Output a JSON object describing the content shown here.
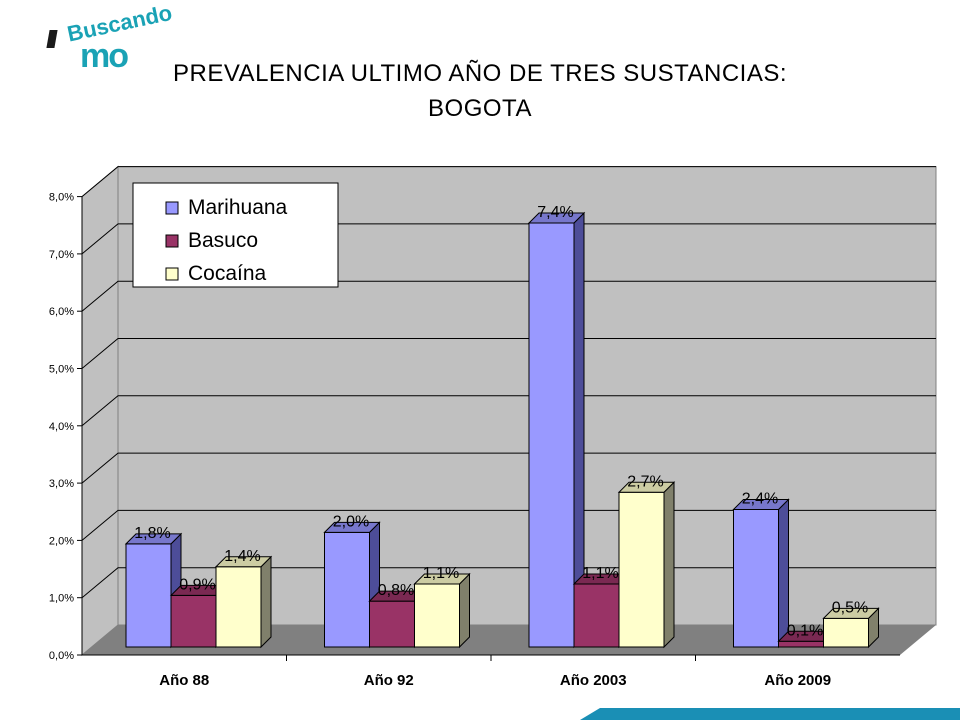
{
  "logo": {
    "text": "Buscando",
    "fragment": "mo"
  },
  "chart_data": {
    "type": "bar",
    "title_line1": "PREVALENCIA ULTIMO AÑO DE TRES SUSTANCIAS:",
    "title_line2": "BOGOTA",
    "categories": [
      "Año 88",
      "Año 92",
      "Año 2003",
      "Año 2009"
    ],
    "series": [
      {
        "name": "Marihuana",
        "values": [
          1.8,
          2.0,
          7.4,
          2.4
        ],
        "labels": [
          "1,8%",
          "2,0%",
          "7,4%",
          "2,4%"
        ],
        "color": "#9999ff",
        "side": "#4d4d99",
        "top": "#7777cc"
      },
      {
        "name": "Basuco",
        "values": [
          0.9,
          0.8,
          1.1,
          0.1
        ],
        "labels": [
          "0,9%",
          "0,8%",
          "1,1%",
          "0,1%"
        ],
        "color": "#993366",
        "side": "#4d1a33",
        "top": "#7a2952"
      },
      {
        "name": "Cocaína",
        "values": [
          1.4,
          1.1,
          2.7,
          0.5
        ],
        "labels": [
          "1,4%",
          "1,1%",
          "2,7%",
          "0,5%"
        ],
        "color": "#ffffcc",
        "side": "#80806b",
        "top": "#cccca3"
      }
    ],
    "yticks": [
      "0,0%",
      "1,0%",
      "2,0%",
      "3,0%",
      "4,0%",
      "5,0%",
      "6,0%",
      "7,0%",
      "8,0%"
    ],
    "ylim": [
      0,
      8
    ],
    "grid": true,
    "legend_position": "top-left",
    "colors": {
      "wall": "#c0c0c0",
      "floor": "#808080",
      "gridline": "#000000"
    }
  }
}
